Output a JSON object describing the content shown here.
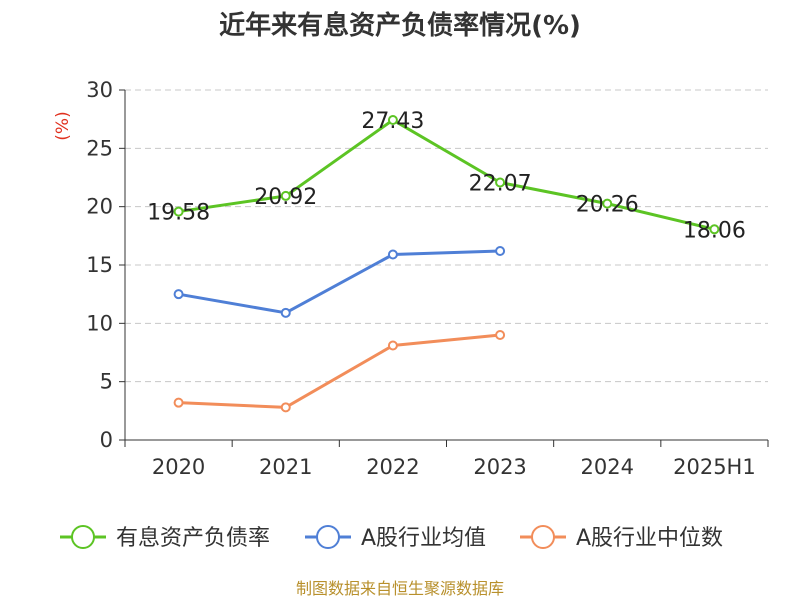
{
  "chart_data": {
    "type": "line",
    "title": "近年来有息资产负债率情况(%)",
    "ylabel": "(%)",
    "categories": [
      "2020",
      "2021",
      "2022",
      "2023",
      "2024",
      "2025H1"
    ],
    "ylim": [
      0,
      30
    ],
    "yticks": [
      0,
      5,
      10,
      15,
      20,
      25,
      30
    ],
    "grid": true,
    "legend_position": "bottom",
    "series": [
      {
        "name": "有息资产负债率",
        "color": "#5cc424",
        "values": [
          19.58,
          20.92,
          27.43,
          22.07,
          20.26,
          18.06
        ],
        "labels": true
      },
      {
        "name": "A股行业均值",
        "color": "#4f7fd6",
        "values": [
          12.5,
          10.9,
          15.9,
          16.2,
          null,
          null
        ],
        "labels": false
      },
      {
        "name": "A股行业中位数",
        "color": "#f28d5a",
        "values": [
          3.2,
          2.8,
          8.1,
          9.0,
          null,
          null
        ],
        "labels": false
      }
    ],
    "source": "制图数据来自恒生聚源数据库"
  }
}
